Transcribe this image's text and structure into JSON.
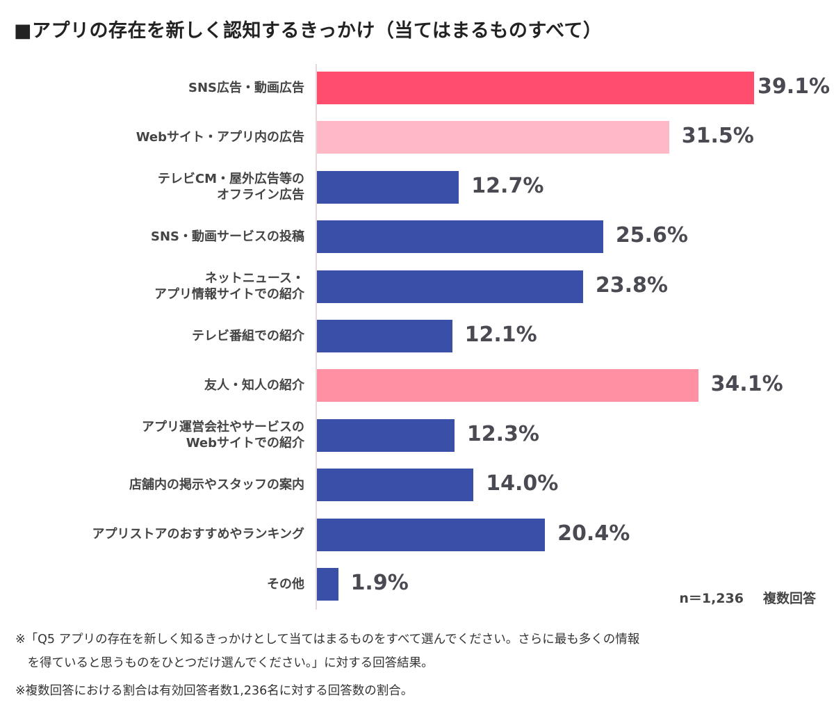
{
  "chart_data": {
    "type": "bar",
    "orientation": "horizontal",
    "title": "■アプリの存在を新しく認知するきっかけ（当てはまるものすべて）",
    "categories": [
      "SNS広告・動画広告",
      "Webサイト・アプリ内の広告",
      "テレビCM・屋外広告等の\nオフライン広告",
      "SNS・動画サービスの投稿",
      "ネットニュース・\nアプリ情報サイトでの紹介",
      "テレビ番組での紹介",
      "友人・知人の紹介",
      "アプリ運営会社やサービスの\nWebサイトでの紹介",
      "店舗内の掲示やスタッフの案内",
      "アプリストアのおすすめやランキング",
      "その他"
    ],
    "values": [
      39.1,
      31.5,
      12.7,
      25.6,
      23.8,
      12.1,
      34.1,
      12.3,
      14.0,
      20.4,
      1.9
    ],
    "value_labels": [
      "39.1%",
      "31.5%",
      "12.7%",
      "25.6%",
      "23.8%",
      "12.1%",
      "34.1%",
      "12.3%",
      "14.0%",
      "20.4%",
      "1.9%"
    ],
    "colors": [
      "#ff4d6d",
      "#ffb8c6",
      "#3a50a8",
      "#3a50a8",
      "#3a50a8",
      "#3a50a8",
      "#ff8fa3",
      "#3a50a8",
      "#3a50a8",
      "#3a50a8",
      "#3a50a8"
    ],
    "xlim": [
      0,
      40
    ],
    "unit": "%"
  },
  "sample": "n＝1,236",
  "answer_type": "複数回答",
  "footnotes": [
    "※「Q5 アプリの存在を新しく知るきっかけとして当てはまるものをすべて選んでください。さらに最も多くの情報",
    "　を得ていると思うものをひとつだけ選んでください。」に対する回答結果。",
    "※複数回答における割合は有効回答者数1,236名に対する回答数の割合。"
  ]
}
